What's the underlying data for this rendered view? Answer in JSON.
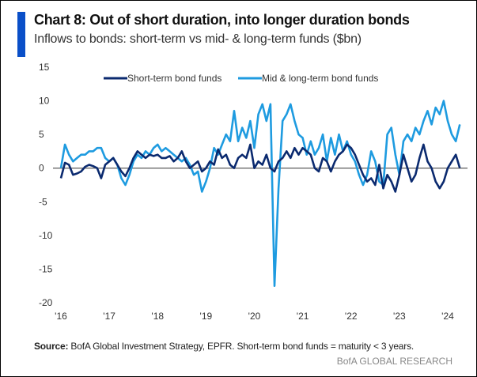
{
  "chart_data": {
    "type": "line",
    "title": "Chart 8: Out of short duration, into longer duration bonds",
    "subtitle": "Inflows to bonds: short-term vs mid- & long-term funds ($bn)",
    "xlabel": "",
    "ylabel": "",
    "ylim": [
      -20,
      15
    ],
    "xlim": [
      2016,
      2024
    ],
    "yticks": [
      15,
      10,
      5,
      0,
      -5,
      -10,
      -15,
      -20
    ],
    "xticks": [
      {
        "v": 2016,
        "label": "'16"
      },
      {
        "v": 2017,
        "label": "'17"
      },
      {
        "v": 2018,
        "label": "'18"
      },
      {
        "v": 2019,
        "label": "'19"
      },
      {
        "v": 2020,
        "label": "'20"
      },
      {
        "v": 2021,
        "label": "'21"
      },
      {
        "v": 2022,
        "label": "'22"
      },
      {
        "v": 2023,
        "label": "'23"
      },
      {
        "v": 2024,
        "label": "'24"
      }
    ],
    "legend_position": "top-center",
    "x_start": 2016,
    "x_step_months": 1,
    "series": [
      {
        "name": "Short-term bond funds",
        "color": "#0b2a6f",
        "values": [
          -1.5,
          0.8,
          0.5,
          -1,
          -0.8,
          -0.5,
          0.2,
          0.5,
          0.3,
          0,
          -1.5,
          0.5,
          1,
          1.5,
          0.5,
          -0.5,
          -1.2,
          0,
          1.5,
          2.5,
          2,
          1.5,
          2,
          1.8,
          2,
          1.5,
          1.5,
          1.8,
          1,
          1.5,
          2.5,
          1,
          0,
          0.5,
          1,
          -0.5,
          0,
          1,
          0.5,
          2.8,
          1.5,
          2,
          0.5,
          0,
          1.5,
          2,
          1.5,
          3.5,
          0,
          1,
          0.5,
          2,
          0,
          -0.5,
          1,
          1.5,
          2.5,
          1.5,
          3,
          2,
          3,
          2.5,
          2,
          0,
          -0.5,
          1.5,
          1,
          -0.5,
          1,
          2,
          2.5,
          3.5,
          3,
          2,
          0.5,
          -1,
          -2,
          -1.5,
          -2.5,
          0.5,
          -3,
          -1,
          -2,
          -3.5,
          -1,
          2,
          0,
          -2,
          -1,
          1.5,
          3.5,
          1,
          0,
          -2,
          -3,
          -2,
          0,
          1,
          2,
          0
        ]
      },
      {
        "name": "Mid & long-term bond funds",
        "color": "#1e9be0",
        "values": [
          0,
          3.5,
          2,
          1,
          1.5,
          2,
          2,
          2.5,
          2.5,
          3,
          3,
          1.5,
          1,
          1.5,
          0.5,
          -1.5,
          -2.5,
          -1,
          1,
          2,
          1.5,
          2.5,
          2,
          3,
          3.5,
          2.5,
          3,
          2.5,
          2,
          1.5,
          1,
          1.5,
          0.5,
          -1,
          -0.5,
          -3.5,
          -2,
          0,
          3,
          2,
          3.5,
          5,
          4,
          8.5,
          4,
          6,
          4.5,
          7,
          3,
          8,
          9.5,
          7,
          9.5,
          -17.5,
          -3,
          7,
          8,
          9.5,
          7,
          5,
          4.5,
          2,
          4,
          2,
          3,
          5,
          1,
          4.5,
          2,
          5,
          2.5,
          4,
          2,
          1,
          -1,
          -2.5,
          -1,
          2.5,
          1,
          -2,
          -2.5,
          5,
          6,
          2,
          -1,
          4,
          5,
          4,
          6,
          5,
          7,
          8.5,
          6.5,
          9,
          8,
          10,
          7,
          5,
          4,
          6.5
        ]
      }
    ]
  },
  "footer": {
    "source_label": "Source:",
    "source_text": " BofA Global Investment Strategy, EPFR. Short-term bond  funds = maturity < 3 years.",
    "brand": "BofA GLOBAL RESEARCH"
  }
}
